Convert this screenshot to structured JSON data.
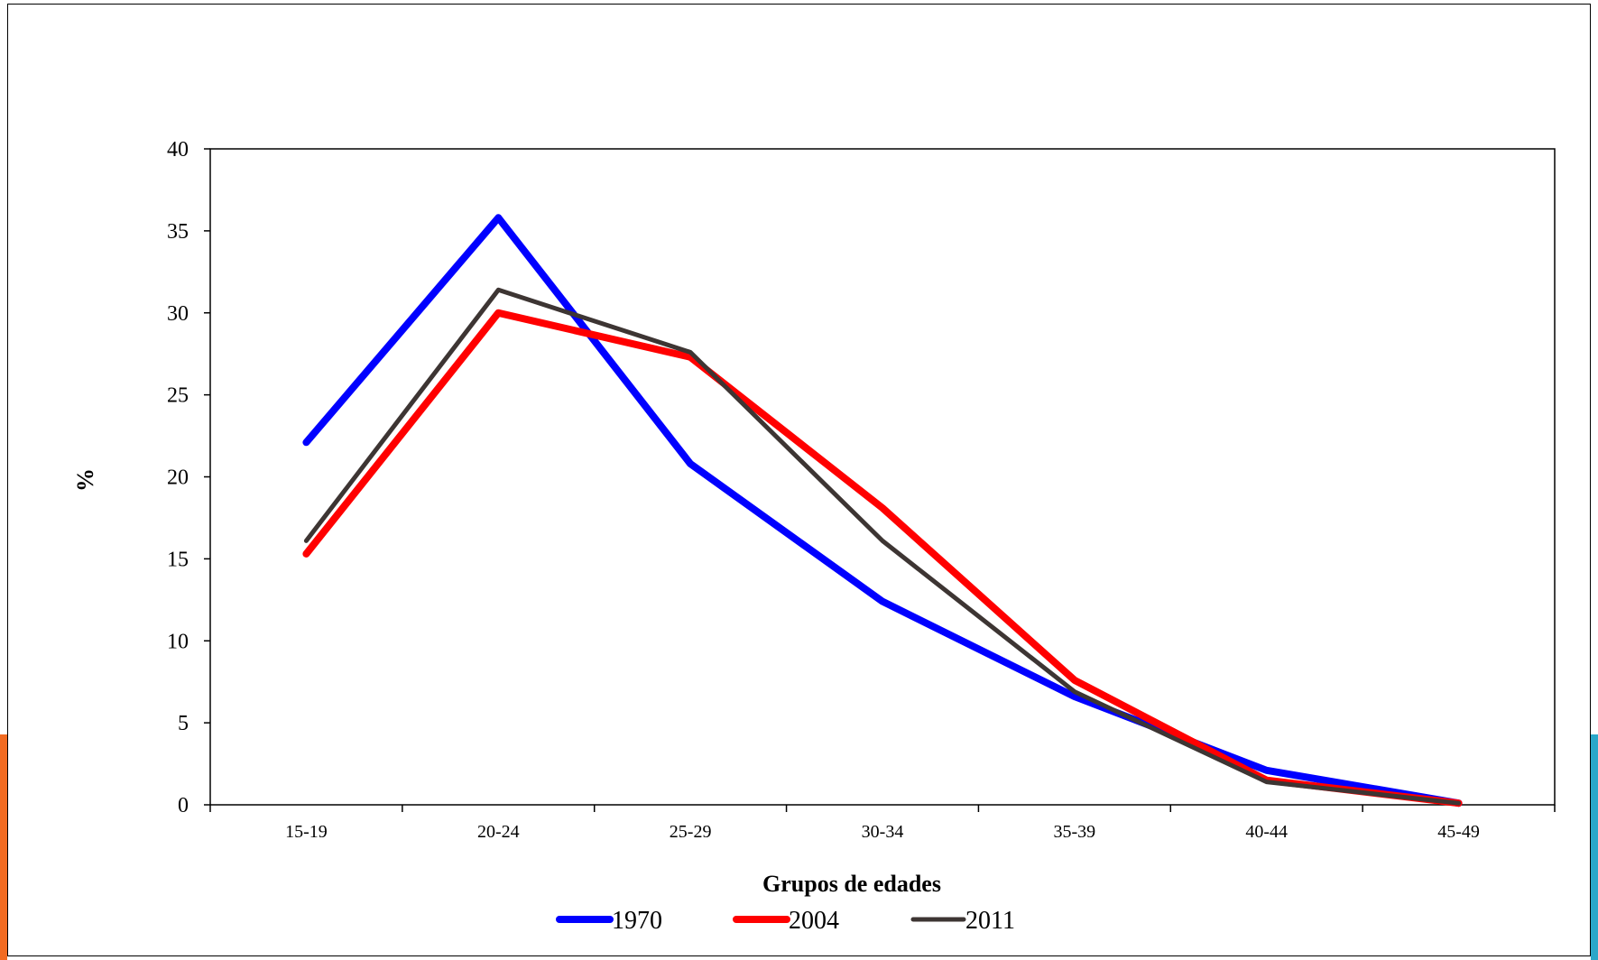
{
  "chart_data": {
    "type": "line",
    "xlabel": "Grupos de edades",
    "ylabel": "%",
    "ylim": [
      0,
      40
    ],
    "yticks": [
      0,
      5,
      10,
      15,
      20,
      25,
      30,
      35,
      40
    ],
    "categories": [
      "15-19",
      "20-24",
      "25-29",
      "30-34",
      "35-39",
      "40-44",
      "45-49"
    ],
    "grid": false,
    "legend_position": "bottom",
    "series": [
      {
        "name": "1970",
        "color": "#0000ff",
        "values": [
          22.1,
          35.8,
          20.8,
          12.4,
          6.6,
          2.1,
          0.1
        ]
      },
      {
        "name": "2004",
        "color": "#ff0000",
        "values": [
          15.3,
          30.0,
          27.3,
          18.1,
          7.6,
          1.5,
          0.1
        ]
      },
      {
        "name": "2011",
        "color": "#3d3533",
        "values": [
          16.1,
          31.4,
          27.6,
          16.1,
          6.9,
          1.4,
          0.1
        ]
      }
    ]
  }
}
